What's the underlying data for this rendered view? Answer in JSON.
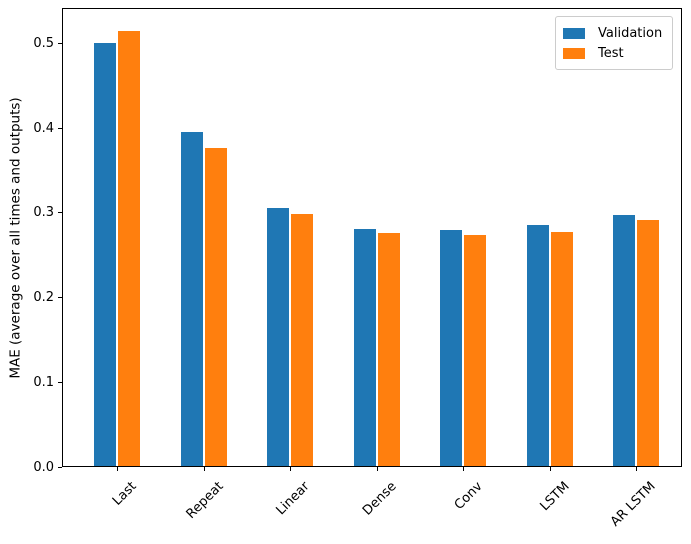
{
  "chart_data": {
    "type": "bar",
    "categories": [
      "Last",
      "Repeat",
      "Linear",
      "Dense",
      "Conv",
      "LSTM",
      "AR LSTM"
    ],
    "series": [
      {
        "name": "Validation",
        "color": "#1f77b4",
        "values": [
          0.501,
          0.395,
          0.306,
          0.281,
          0.28,
          0.286,
          0.298
        ]
      },
      {
        "name": "Test",
        "color": "#ff7f0e",
        "values": [
          0.515,
          0.377,
          0.299,
          0.276,
          0.274,
          0.277,
          0.292
        ]
      }
    ],
    "title": "",
    "xlabel": "",
    "ylabel": "MAE (average over all times and outputs)",
    "ylim": [
      0.0,
      0.542
    ],
    "yticks": [
      0.0,
      0.1,
      0.2,
      0.3,
      0.4,
      0.5
    ],
    "ytick_format_decimals": 1,
    "grid": false,
    "legend_position": "upper right",
    "x_tick_rotation": 45,
    "background_color": "#ffffff",
    "spine_color": "#000000"
  }
}
